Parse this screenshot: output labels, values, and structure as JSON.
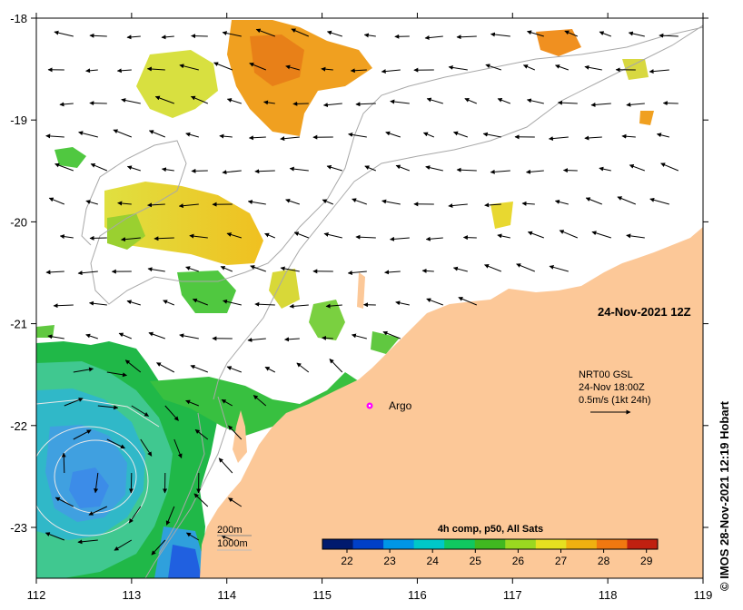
{
  "map": {
    "timestamp": "24-Nov-2021 12Z",
    "product": "4h comp, p50, All Sats",
    "colorbar": {
      "ticks": [
        "22",
        "23",
        "24",
        "25",
        "26",
        "27",
        "28",
        "29"
      ],
      "colors": [
        "#001a6e",
        "#0040c8",
        "#0096e6",
        "#00c8c8",
        "#10c860",
        "#40b820",
        "#9ad820",
        "#e6e020",
        "#f0b010",
        "#f07810",
        "#c02010"
      ]
    },
    "current_legend": {
      "line1": "NRT00 GSL",
      "line2": "24-Nov 18:00Z",
      "line3": "0.5m/s (1kt 24h)"
    },
    "argo_label": "Argo",
    "isobath_legend": {
      "shallow": "200m",
      "deep": "1000m"
    },
    "x_ticks": [
      "112",
      "113",
      "114",
      "115",
      "116",
      "117",
      "118",
      "119"
    ],
    "y_ticks": [
      "-18",
      "-19",
      "-20",
      "-21",
      "-22",
      "-23"
    ],
    "credit": "© IMOS 28-Nov-2021 12:19 Hobart",
    "colors": {
      "land": "#fcc898",
      "ocean_nodata": "#ffffff",
      "argo": "#ff00ff"
    }
  }
}
